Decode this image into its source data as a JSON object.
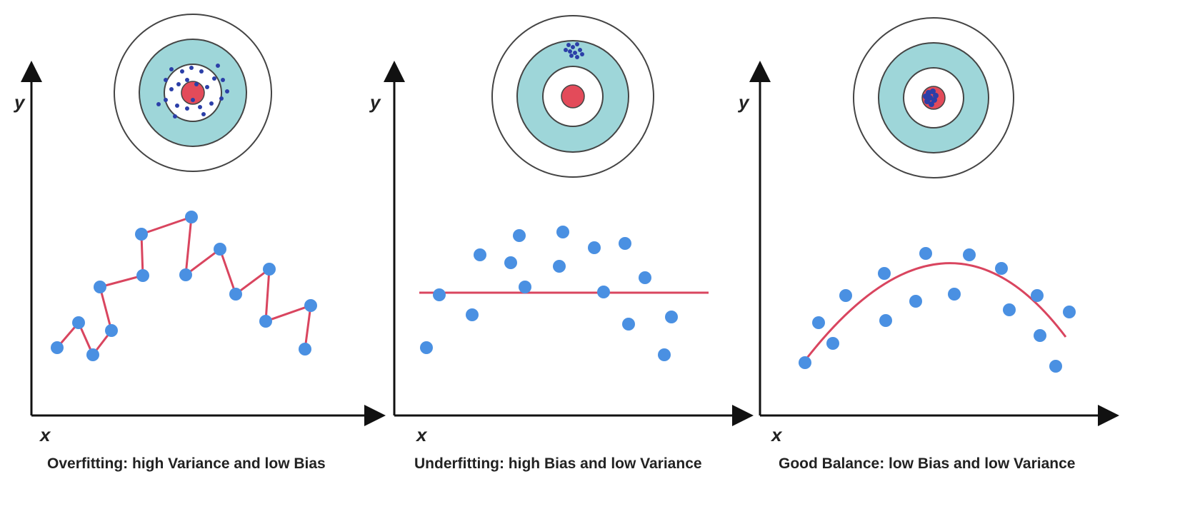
{
  "colors": {
    "target_fill": "#9ed6d9",
    "ring_stroke": "#444444",
    "bullseye": "#e34b5a",
    "shot": "#2b3fa8",
    "point": "#4a90e2",
    "curve": "#d9455f",
    "axis": "#111111"
  },
  "panels": [
    {
      "id": "overfitting",
      "caption": "Overfitting: high Variance and low Bias",
      "y_label": "y",
      "x_label": "x",
      "target_hits": "spread around center",
      "fit": "zigzag"
    },
    {
      "id": "underfitting",
      "caption": "Underfitting: high Bias and low Variance",
      "y_label": "y",
      "x_label": "x",
      "target_hits": "clustered off center",
      "fit": "flat line"
    },
    {
      "id": "good-balance",
      "caption": "Good Balance: low Bias and low Variance",
      "y_label": "y",
      "x_label": "x",
      "target_hits": "clustered on center",
      "fit": "smooth curve"
    }
  ]
}
